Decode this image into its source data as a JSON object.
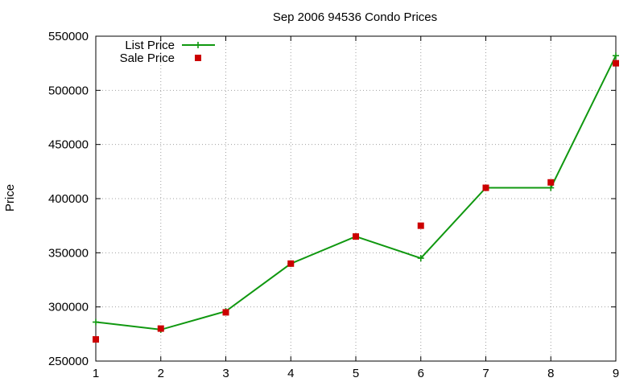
{
  "chart_data": {
    "type": "line",
    "title": "Sep 2006 94536 Condo Prices",
    "xlabel": "",
    "ylabel": "Price",
    "xlim": [
      1,
      9
    ],
    "ylim": [
      250000,
      550000
    ],
    "x_ticks": [
      "1",
      "2",
      "3",
      "4",
      "5",
      "6",
      "7",
      "8",
      "9"
    ],
    "y_ticks": [
      "250000",
      "300000",
      "350000",
      "400000",
      "450000",
      "500000",
      "550000"
    ],
    "grid": true,
    "legend_position": "top-left",
    "series": [
      {
        "name": "List Price",
        "style": "linespoints",
        "marker": "plus",
        "color": "#109810",
        "x": [
          1,
          2,
          3,
          4,
          5,
          6,
          7,
          8,
          9
        ],
        "values": [
          286000,
          279000,
          296000,
          340000,
          365000,
          345000,
          410000,
          410000,
          532000
        ]
      },
      {
        "name": "Sale Price",
        "style": "points",
        "marker": "square",
        "color": "#cc0000",
        "x": [
          1,
          2,
          3,
          4,
          5,
          6,
          7,
          8,
          9
        ],
        "values": [
          270000,
          280000,
          295000,
          340000,
          365000,
          375000,
          410000,
          415000,
          525000
        ]
      }
    ]
  }
}
